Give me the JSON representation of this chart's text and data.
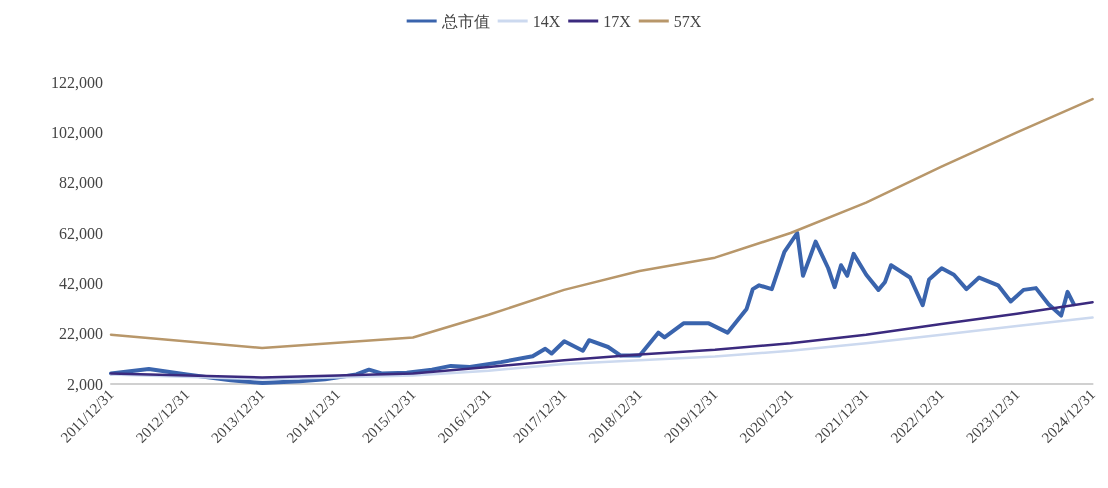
{
  "chart_data": {
    "type": "line",
    "legend": "top",
    "grid": false,
    "marker": "none",
    "line_style": "solid",
    "ylim": [
      2000,
      122000
    ],
    "yticks": [
      {
        "value": 2000,
        "label": "2,000"
      },
      {
        "value": 22000,
        "label": "22,000"
      },
      {
        "value": 42000,
        "label": "42,000"
      },
      {
        "value": 62000,
        "label": "62,000"
      },
      {
        "value": 82000,
        "label": "82,000"
      },
      {
        "value": 102000,
        "label": "102,000"
      },
      {
        "value": 122000,
        "label": "122,000"
      }
    ],
    "xlim": [
      "2011-12-31",
      "2024-12-31"
    ],
    "xticks": [
      {
        "value": "2011-12-31",
        "label": "2011/12/31"
      },
      {
        "value": "2012-12-31",
        "label": "2012/12/31"
      },
      {
        "value": "2013-12-31",
        "label": "2013/12/31"
      },
      {
        "value": "2014-12-31",
        "label": "2014/12/31"
      },
      {
        "value": "2015-12-31",
        "label": "2015/12/31"
      },
      {
        "value": "2016-12-31",
        "label": "2016/12/31"
      },
      {
        "value": "2017-12-31",
        "label": "2017/12/31"
      },
      {
        "value": "2018-12-31",
        "label": "2018/12/31"
      },
      {
        "value": "2019-12-31",
        "label": "2019/12/31"
      },
      {
        "value": "2020-12-31",
        "label": "2020/12/31"
      },
      {
        "value": "2021-12-31",
        "label": "2021/12/31"
      },
      {
        "value": "2022-12-31",
        "label": "2022/12/31"
      },
      {
        "value": "2023-12-31",
        "label": "2023/12/31"
      },
      {
        "value": "2024-12-31",
        "label": "2024/12/31"
      }
    ],
    "series": [
      {
        "name": "总市值",
        "color": "#3a64ad",
        "x": [
          "2011-12-31",
          "2012-07",
          "2012-10",
          "2013-01",
          "2013-08",
          "2014-01",
          "2014-07",
          "2014-11",
          "2015-04",
          "2015-06",
          "2015-08",
          "2015-12",
          "2016-04",
          "2016-07",
          "2016-10",
          "2017-03",
          "2017-08",
          "2017-10",
          "2017-11",
          "2018-01",
          "2018-04",
          "2018-05",
          "2018-08",
          "2018-10",
          "2019-01",
          "2019-04",
          "2019-05",
          "2019-08",
          "2019-12",
          "2020-03",
          "2020-06",
          "2020-07",
          "2020-08",
          "2020-10",
          "2020-12",
          "2021-02",
          "2021-03",
          "2021-04",
          "2021-05",
          "2021-07",
          "2021-08",
          "2021-09",
          "2021-10",
          "2021-11",
          "2022-01",
          "2022-03",
          "2022-04",
          "2022-05",
          "2022-08",
          "2022-10",
          "2022-11",
          "2023-01",
          "2023-03",
          "2023-05",
          "2023-07",
          "2023-10",
          "2023-12",
          "2024-02",
          "2024-04",
          "2024-06",
          "2024-08",
          "2024-09",
          "2024-10"
        ],
        "values": [
          6200,
          8000,
          6900,
          5800,
          3500,
          2400,
          3100,
          3900,
          5800,
          7700,
          6200,
          6500,
          7700,
          9200,
          8800,
          10700,
          13000,
          16000,
          14100,
          19000,
          15200,
          19400,
          16700,
          13300,
          13300,
          22400,
          20500,
          26100,
          26100,
          22400,
          31800,
          39700,
          41200,
          39700,
          54500,
          62000,
          45000,
          51800,
          58600,
          48000,
          40500,
          49200,
          45000,
          53700,
          45400,
          39400,
          42400,
          49200,
          44300,
          33300,
          43500,
          48000,
          45400,
          39700,
          44300,
          41200,
          34800,
          39400,
          40100,
          33700,
          29200,
          38600,
          33700
        ]
      },
      {
        "name": "14X",
        "color": "#ccd9ef",
        "x": [
          "2011-12-31",
          "2013-12-31",
          "2015-12-31",
          "2016-12-31",
          "2017-12-31",
          "2018-12-31",
          "2019-12-31",
          "2020-12-31",
          "2021-12-31",
          "2022-12-31",
          "2023-12-31",
          "2024-12-31"
        ],
        "values": [
          5800,
          3900,
          5400,
          7300,
          9900,
          11400,
          12900,
          15200,
          18200,
          21600,
          25000,
          28400
        ]
      },
      {
        "name": "17X",
        "color": "#3b2a7e",
        "x": [
          "2011-12-31",
          "2013-12-31",
          "2015-12-31",
          "2016-12-31",
          "2017-12-31",
          "2018-12-31",
          "2019-12-31",
          "2020-12-31",
          "2021-12-31",
          "2022-12-31",
          "2023-12-31",
          "2024-12-31"
        ],
        "values": [
          6200,
          4600,
          6200,
          8800,
          11400,
          13700,
          15600,
          18200,
          21600,
          25800,
          29900,
          34500
        ]
      },
      {
        "name": "57X",
        "color": "#b8976a",
        "x": [
          "2011-12-31",
          "2013-12-31",
          "2015-12-31",
          "2016-12-31",
          "2017-12-31",
          "2018-12-31",
          "2019-12-31",
          "2020-12-31",
          "2021-12-31",
          "2022-12-31",
          "2023-12-31",
          "2024-12-31"
        ],
        "values": [
          21600,
          16300,
          20500,
          29500,
          39400,
          46900,
          52200,
          62000,
          74100,
          88400,
          102000,
          115200
        ]
      }
    ]
  }
}
